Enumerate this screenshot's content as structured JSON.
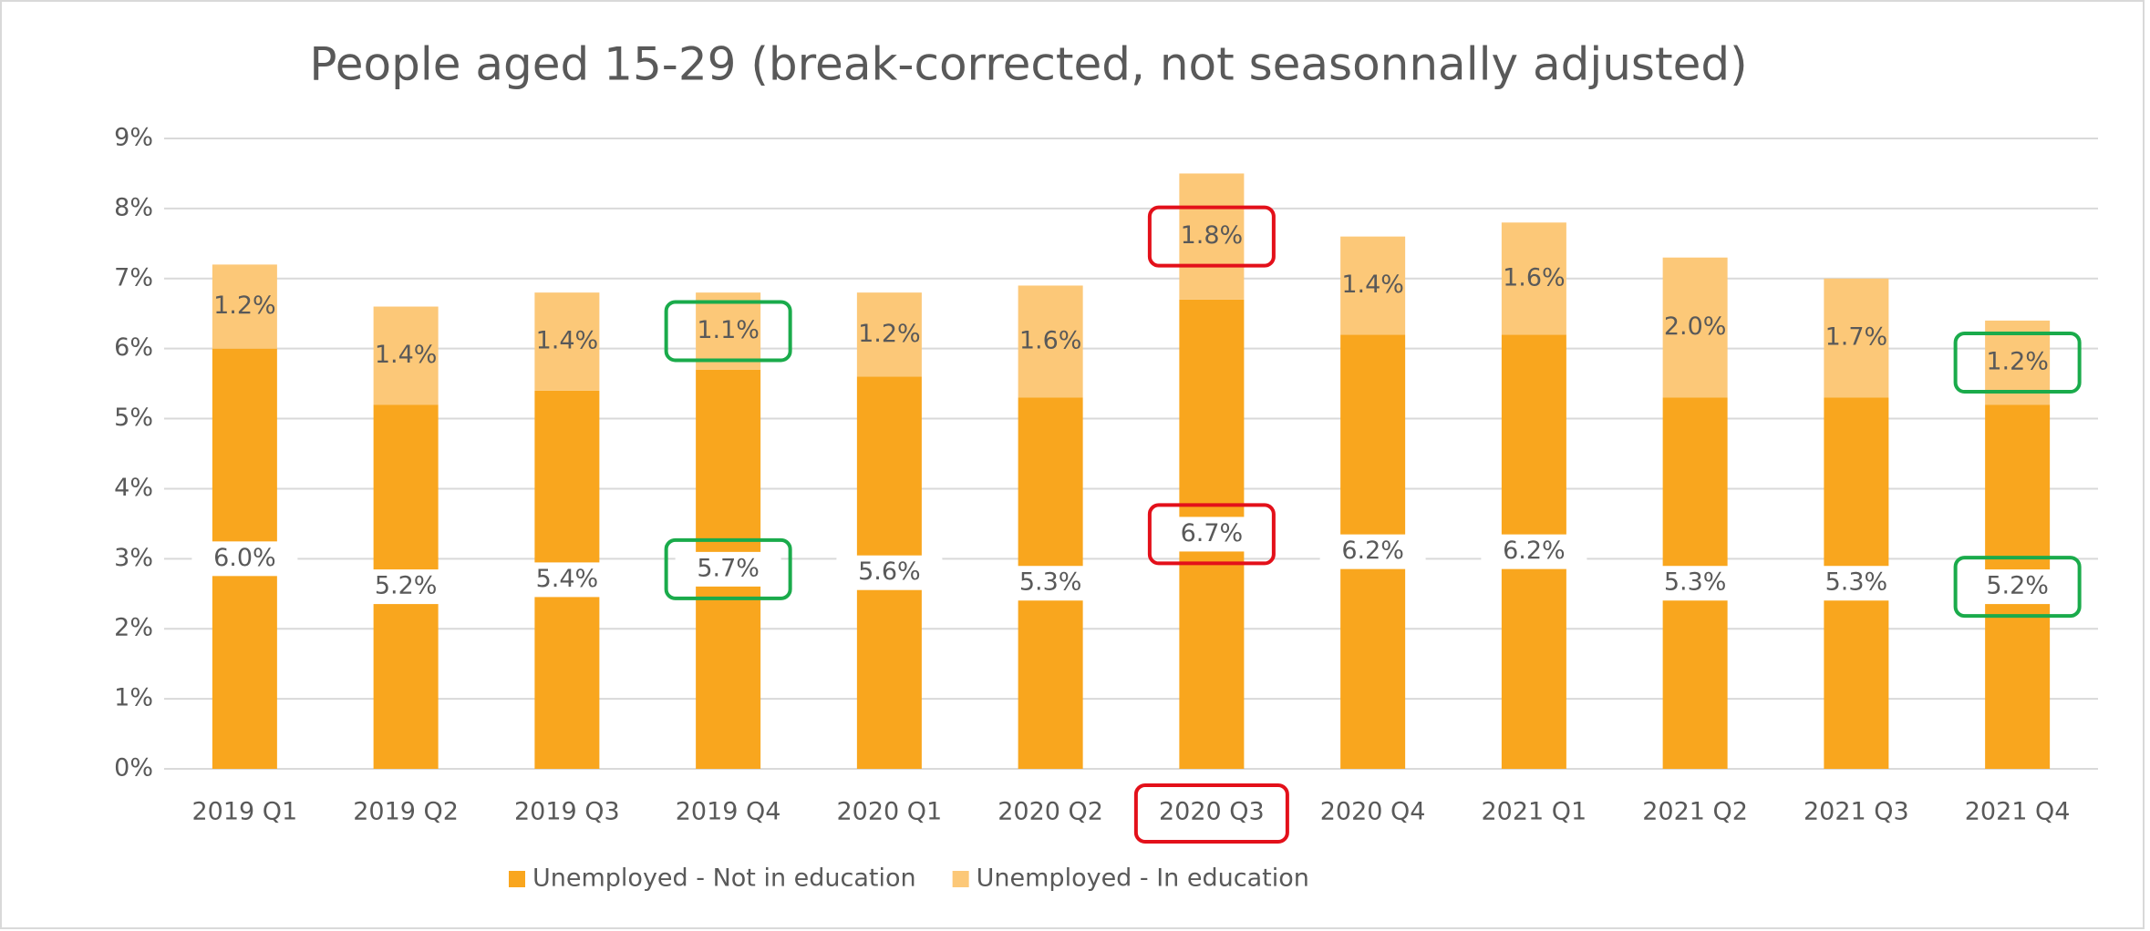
{
  "chart_data": {
    "type": "stacked_bar",
    "title": "People aged 15-29 (break-corrected, not seasonnally adjusted)",
    "categories": [
      "2019 Q1",
      "2019 Q2",
      "2019 Q3",
      "2019 Q4",
      "2020 Q1",
      "2020 Q2",
      "2020 Q3",
      "2020 Q4",
      "2021 Q1",
      "2021 Q2",
      "2021 Q3",
      "2021 Q4"
    ],
    "series": [
      {
        "name": "Unemployed - Not in education",
        "color": "#F9A61E",
        "values": [
          6.0,
          5.2,
          5.4,
          5.7,
          5.6,
          5.3,
          6.7,
          6.2,
          6.2,
          5.3,
          5.3,
          5.2
        ],
        "value_labels": [
          "6.0%",
          "5.2%",
          "5.4%",
          "5.7%",
          "5.6%",
          "5.3%",
          "6.7%",
          "6.2%",
          "6.2%",
          "5.3%",
          "5.3%",
          "5.2%"
        ]
      },
      {
        "name": "Unemployed - In education",
        "color": "#FCC878",
        "values": [
          1.2,
          1.4,
          1.4,
          1.1,
          1.2,
          1.6,
          1.8,
          1.4,
          1.6,
          2.0,
          1.7,
          1.2
        ],
        "value_labels": [
          "1.2%",
          "1.4%",
          "1.4%",
          "1.1%",
          "1.2%",
          "1.6%",
          "1.8%",
          "1.4%",
          "1.6%",
          "2.0%",
          "1.7%",
          "1.2%"
        ]
      }
    ],
    "ylim": [
      0,
      9
    ],
    "yticks": [
      {
        "value": 0,
        "label": "0%"
      },
      {
        "value": 1,
        "label": "1%"
      },
      {
        "value": 2,
        "label": "2%"
      },
      {
        "value": 3,
        "label": "3%"
      },
      {
        "value": 4,
        "label": "4%"
      },
      {
        "value": 5,
        "label": "5%"
      },
      {
        "value": 6,
        "label": "6%"
      },
      {
        "value": 7,
        "label": "7%"
      },
      {
        "value": 8,
        "label": "8%"
      },
      {
        "value": 9,
        "label": "9%"
      }
    ],
    "grid": true,
    "legend": "bottom"
  }
}
